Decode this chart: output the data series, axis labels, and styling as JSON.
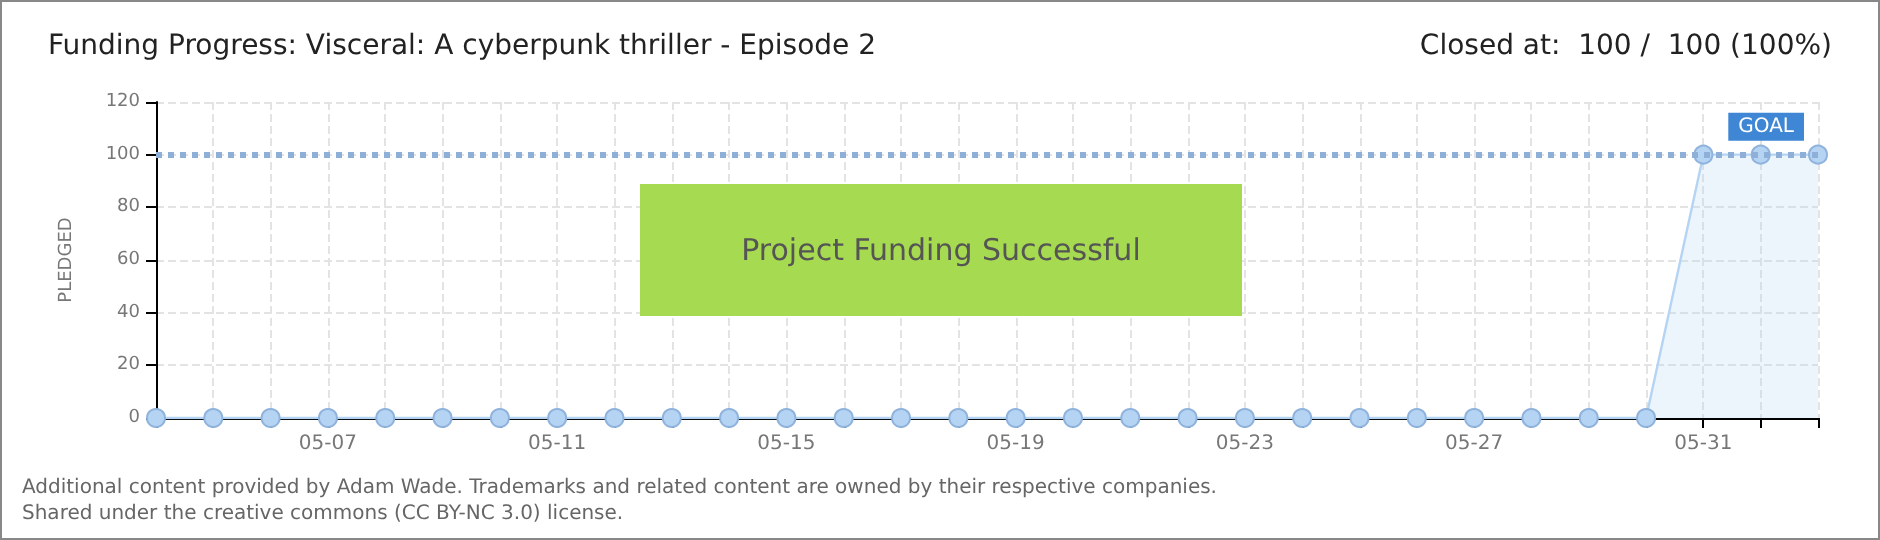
{
  "chart_data": {
    "type": "area",
    "title": "Funding Progress: Visceral: A cyberpunk thriller - Episode 2",
    "subtitle": "Closed at:  100 /  100 (100%)",
    "ylabel": "PLEDGED",
    "categories": [
      null,
      null,
      null,
      "05-07",
      null,
      null,
      null,
      "05-11",
      null,
      null,
      null,
      "05-15",
      null,
      null,
      null,
      "05-19",
      null,
      null,
      null,
      "05-23",
      null,
      null,
      null,
      "05-27",
      null,
      null,
      null,
      "05-31",
      null,
      null
    ],
    "series": [
      {
        "color": "#b5d4f4",
        "values": [
          0,
          0,
          0,
          0,
          0,
          0,
          0,
          0,
          0,
          0,
          0,
          0,
          0,
          0,
          0,
          0,
          0,
          0,
          0,
          0,
          0,
          0,
          0,
          0,
          0,
          0,
          0,
          100,
          100,
          100
        ]
      }
    ],
    "ylim": [
      0,
      120
    ],
    "yticks": [
      0,
      20,
      40,
      60,
      80,
      100,
      120
    ],
    "grid": true,
    "marker": "circle",
    "ref_lines": [
      {
        "axis": "y",
        "value": 100,
        "label": "GOAL",
        "color": "#8eb0d8",
        "line_style": "dotted"
      }
    ],
    "annotations": [
      "Project Funding Successful",
      "Additional content provided by Adam Wade. Trademarks and related content are owned by their respective companies.",
      "Shared under the creative commons (CC BY-NC 3.0) license."
    ]
  }
}
